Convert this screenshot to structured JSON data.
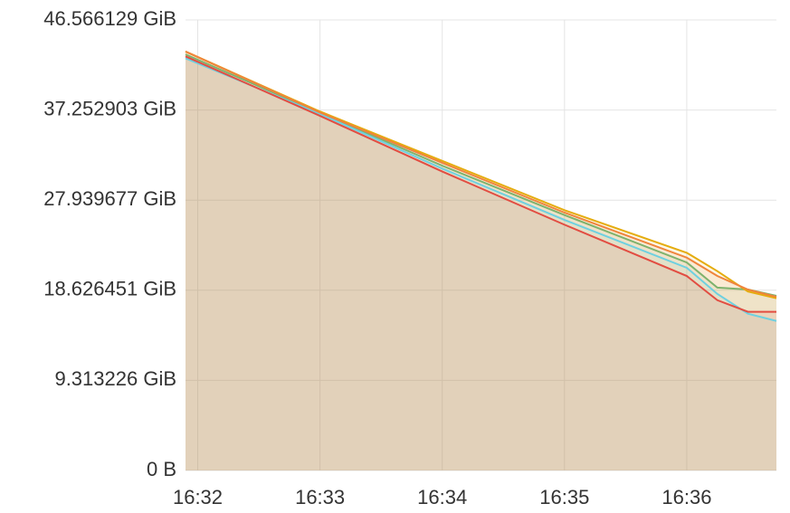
{
  "chart_data": {
    "type": "area",
    "x": [
      "16:31:54",
      "16:33:00",
      "16:34:00",
      "16:35:00",
      "16:36:00",
      "16:36:15",
      "16:36:30",
      "16:36:44"
    ],
    "xlim": [
      "16:31:54",
      "16:36:44"
    ],
    "xticks": [
      "16:32",
      "16:33",
      "16:34",
      "16:35",
      "16:36"
    ],
    "ylim": [
      0,
      46.566129
    ],
    "yticks": [
      {
        "value": 0,
        "label": "0 B"
      },
      {
        "value": 9.313226,
        "label": "9.313226 GiB"
      },
      {
        "value": 18.626451,
        "label": "18.626451 GiB"
      },
      {
        "value": 27.939677,
        "label": "27.939677 GiB"
      },
      {
        "value": 37.252903,
        "label": "37.252903 GiB"
      },
      {
        "value": 46.566129,
        "label": "46.566129 GiB"
      }
    ],
    "grid": true,
    "series": [
      {
        "color": "#7eb26d",
        "values": [
          43.0,
          36.95,
          31.5,
          26.4,
          21.5,
          18.9,
          18.7,
          18.05
        ]
      },
      {
        "color": "#e5ac0e",
        "values": [
          43.3,
          37.1,
          32.0,
          26.9,
          22.5,
          20.6,
          18.5,
          17.8
        ]
      },
      {
        "color": "#6ed0e0",
        "values": [
          42.6,
          36.85,
          31.2,
          25.9,
          20.95,
          18.25,
          16.2,
          15.45
        ]
      },
      {
        "color": "#ef843c",
        "values": [
          43.3,
          37.0,
          31.8,
          26.65,
          22.0,
          20.1,
          18.7,
          17.95
        ]
      },
      {
        "color": "#e24d42",
        "values": [
          42.8,
          36.65,
          30.9,
          25.4,
          20.1,
          17.6,
          16.4,
          16.4
        ]
      }
    ]
  }
}
